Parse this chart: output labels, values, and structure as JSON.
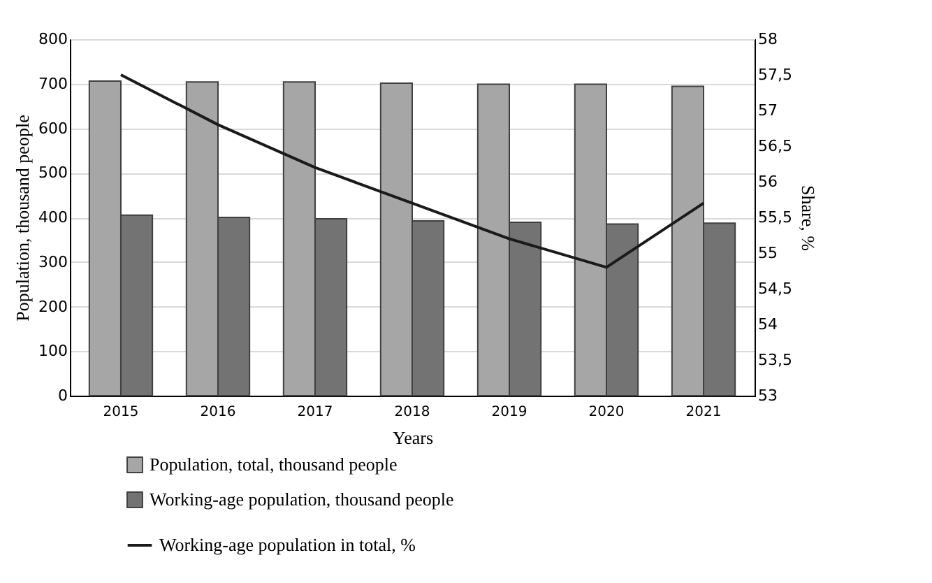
{
  "chart_data": {
    "type": "bar",
    "xlabel": "Years",
    "ylabel": "Population, thousand people",
    "y2label": "Share, %",
    "categories": [
      "2015",
      "2016",
      "2017",
      "2018",
      "2019",
      "2020",
      "2021"
    ],
    "series": [
      {
        "name": "Population, total, thousand people",
        "color": "#a6a6a6",
        "values": [
          706,
          704,
          704,
          701,
          699,
          699,
          694
        ]
      },
      {
        "name": "Working-age population, thousand people",
        "color": "#737373",
        "values": [
          405,
          400,
          397,
          392,
          389,
          385,
          387
        ]
      },
      {
        "name": "Working-age population in total, %",
        "type": "line",
        "axis": "y2",
        "color": "#1a1a1a",
        "values": [
          57.5,
          56.8,
          56.2,
          55.7,
          55.2,
          54.8,
          55.7
        ]
      }
    ],
    "ylim": [
      0,
      800
    ],
    "yticks": [
      0,
      100,
      200,
      300,
      400,
      500,
      600,
      700,
      800
    ],
    "y2lim": [
      53,
      58
    ],
    "y2ticks": [
      53,
      {
        "value": 53.5,
        "label": "53,5"
      },
      54,
      {
        "value": 54.5,
        "label": "54,5"
      },
      55,
      {
        "value": 55.5,
        "label": "55,5"
      },
      56,
      {
        "value": 56.5,
        "label": "56,5"
      },
      57,
      {
        "value": 57.5,
        "label": "57,5"
      },
      58
    ],
    "grid": "y",
    "legend": "bottom"
  }
}
